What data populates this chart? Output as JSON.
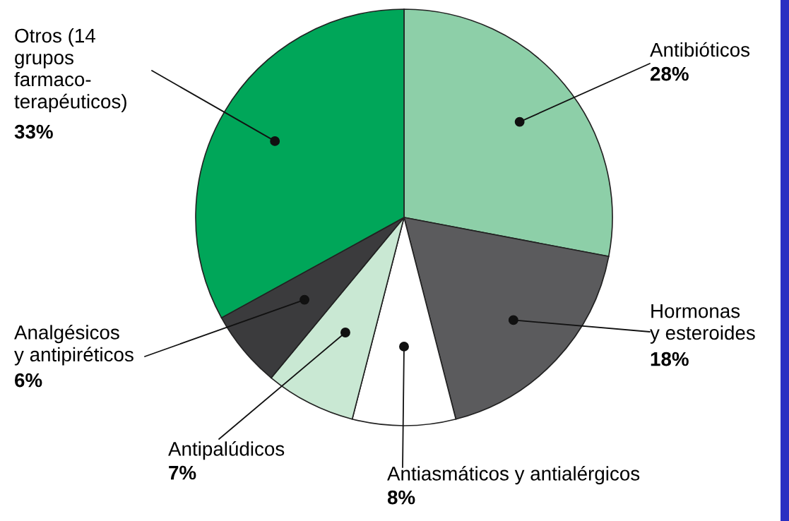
{
  "chart_data": {
    "type": "pie",
    "categories": [
      "Antibióticos",
      "Hormonas\ny esteroides",
      "Antiasmáticos y antialérgicos",
      "Antipalúdicos",
      "Analgésicos\ny antipiréticos",
      "Otros (14\ngrupos\nfarmaco-\nterapéuticos)"
    ],
    "values": [
      28,
      18,
      8,
      7,
      6,
      33
    ],
    "colors": [
      "#8dcfa8",
      "#5b5b5d",
      "#ffffff",
      "#c9e8d3",
      "#3b3b3d",
      "#00a659"
    ],
    "value_labels": [
      "28%",
      "18%",
      "8%",
      "7%",
      "6%",
      "33%"
    ]
  }
}
